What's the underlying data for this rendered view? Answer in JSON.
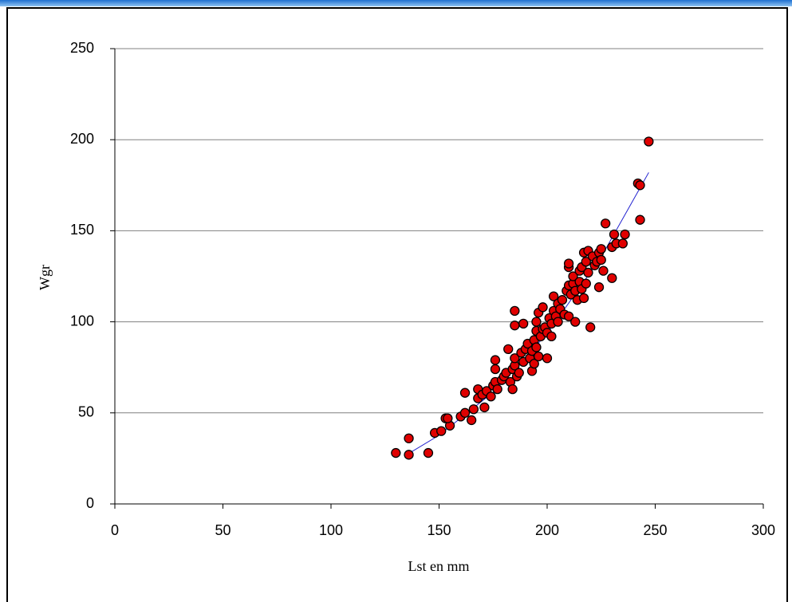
{
  "chart_data": {
    "type": "scatter",
    "x_label": "Lst en mm",
    "y_label": "Wgr",
    "xlim": [
      0,
      300
    ],
    "ylim": [
      0,
      250
    ],
    "xticks": [
      0,
      50,
      100,
      150,
      200,
      250,
      300
    ],
    "yticks": [
      0,
      50,
      100,
      150,
      200,
      250
    ],
    "grid": true,
    "color": "#e00000",
    "x": [
      130,
      136,
      136,
      145,
      148,
      151,
      153,
      155,
      154,
      160,
      162,
      162,
      165,
      166,
      168,
      168,
      170,
      171,
      172,
      174,
      175,
      176,
      176,
      176,
      177,
      179,
      180,
      181,
      182,
      183,
      184,
      184,
      185,
      185,
      185,
      185,
      186,
      187,
      188,
      189,
      189,
      190,
      191,
      192,
      193,
      193,
      194,
      194,
      195,
      195,
      195,
      196,
      196,
      197,
      198,
      198,
      199,
      200,
      200,
      201,
      202,
      202,
      203,
      203,
      204,
      205,
      205,
      206,
      207,
      208,
      209,
      210,
      210,
      210,
      210,
      211,
      212,
      212,
      213,
      213,
      214,
      215,
      215,
      216,
      216,
      217,
      217,
      218,
      218,
      219,
      219,
      220,
      221,
      222,
      223,
      224,
      224,
      225,
      225,
      226,
      227,
      230,
      230,
      231,
      232,
      235,
      236,
      242,
      243,
      243,
      247
    ],
    "values": [
      28,
      27,
      36,
      28,
      39,
      40,
      47,
      43,
      47,
      48,
      50,
      61,
      46,
      52,
      58,
      63,
      60,
      53,
      62,
      59,
      65,
      67,
      74,
      79,
      63,
      68,
      70,
      72,
      85,
      67,
      63,
      74,
      76,
      80,
      98,
      106,
      70,
      72,
      83,
      78,
      99,
      85,
      88,
      80,
      84,
      73,
      90,
      77,
      86,
      95,
      100,
      105,
      81,
      92,
      96,
      108,
      97,
      80,
      94,
      102,
      99,
      92,
      106,
      114,
      103,
      100,
      110,
      107,
      112,
      104,
      117,
      103,
      120,
      130,
      132,
      115,
      121,
      125,
      100,
      117,
      112,
      128,
      122,
      118,
      130,
      138,
      113,
      121,
      133,
      127,
      139,
      97,
      136,
      131,
      133,
      119,
      138,
      140,
      134,
      128,
      154,
      124,
      141,
      148,
      143,
      143,
      148,
      176,
      175,
      156,
      199
    ],
    "trendline": {
      "color": "#2020d0",
      "x": [
        135,
        150,
        175,
        200,
        225,
        247
      ],
      "values": [
        27,
        37.7,
        61.3,
        93.5,
        135.6,
        182
      ]
    }
  }
}
